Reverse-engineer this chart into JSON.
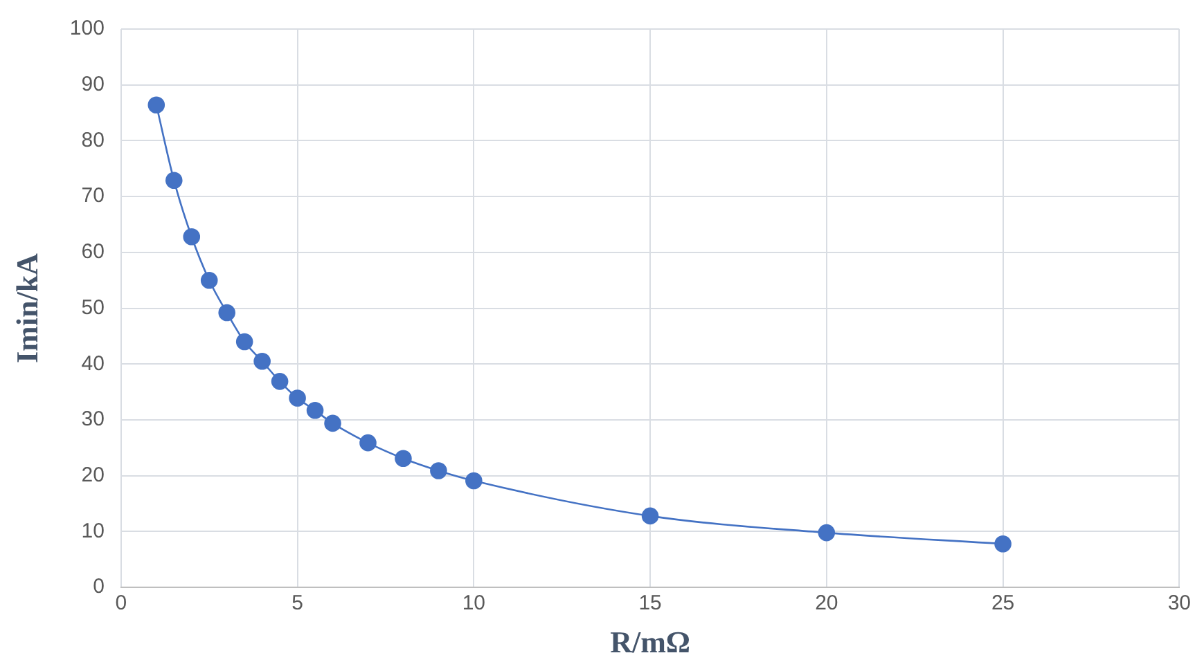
{
  "chart_data": {
    "type": "line",
    "xlabel": "R/mΩ",
    "ylabel": "Imin/kA",
    "x": [
      1,
      1.5,
      2,
      2.5,
      3,
      3.5,
      4,
      4.5,
      5,
      5.5,
      6,
      7,
      8,
      9,
      10,
      15,
      20,
      25
    ],
    "series": [
      {
        "color": "#4472c4",
        "values": [
          86.4,
          72.9,
          62.8,
          55.0,
          49.2,
          44.0,
          40.5,
          36.9,
          33.9,
          31.7,
          29.4,
          25.9,
          23.1,
          20.9,
          19.1,
          12.8,
          9.8,
          7.8
        ]
      }
    ],
    "xlim": [
      0,
      30
    ],
    "xticks": [
      0,
      5,
      10,
      15,
      20,
      25,
      30
    ],
    "ylim": [
      0,
      100
    ],
    "yticks": [
      0,
      10,
      20,
      30,
      40,
      50,
      60,
      70,
      80,
      90,
      100
    ],
    "grid": true,
    "legend": false,
    "marker": "circle",
    "line_style": "solid"
  }
}
